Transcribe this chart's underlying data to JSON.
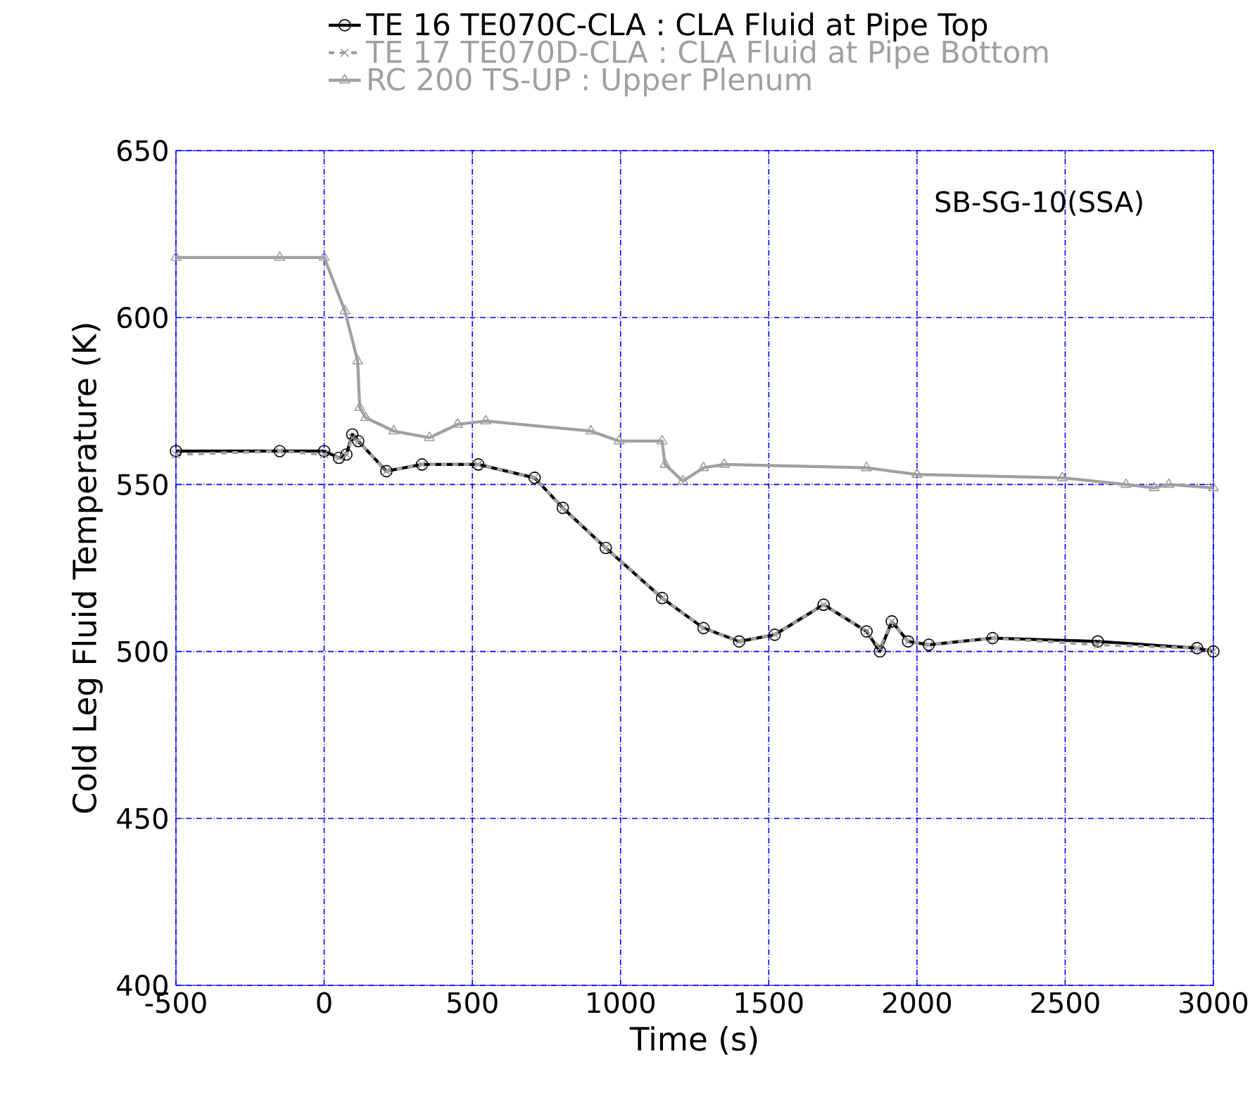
{
  "chart_data": {
    "type": "line",
    "xlabel": "Time (s)",
    "ylabel": "Cold Leg Fluid Temperature (K)",
    "annotations": [
      "SB-SG-10(SSA)"
    ],
    "xlim": [
      -500,
      3000
    ],
    "xticks": [
      -500,
      0,
      500,
      1000,
      1500,
      2000,
      2500,
      3000
    ],
    "ylim": [
      400,
      650
    ],
    "yticks": [
      400,
      450,
      500,
      550,
      600,
      650
    ],
    "grid": true,
    "legend": "top",
    "series": [
      {
        "name": "TE    16 TE070C-CLA : CLA Fluid at Pipe Top",
        "color": "#000000",
        "marker": "circle",
        "line_style": "solid",
        "x": [
          -500,
          -150,
          0,
          50,
          75,
          95,
          115,
          210,
          330,
          520,
          710,
          805,
          950,
          1140,
          1280,
          1400,
          1520,
          1685,
          1830,
          1875,
          1915,
          1970,
          2040,
          2255,
          2610,
          2945,
          3000
        ],
        "values": [
          560,
          560,
          560,
          558,
          559,
          565,
          563,
          554,
          556,
          556,
          552,
          543,
          531,
          516,
          507,
          503,
          505,
          514,
          506,
          500,
          509,
          503,
          502,
          504,
          503,
          501,
          500
        ]
      },
      {
        "name": "TE    17 TE070D-CLA : CLA Fluid at Pipe Bottom",
        "color": "#a0a0a0",
        "marker": "cross",
        "line_style": "dashed",
        "x": [
          -500,
          -150,
          0,
          50,
          75,
          95,
          115,
          210,
          330,
          520,
          710,
          805,
          950,
          1140,
          1280,
          1400,
          1520,
          1685,
          1830,
          1875,
          1915,
          1970,
          2040,
          2255,
          2610,
          2945,
          3000
        ],
        "values": [
          559,
          560,
          559,
          558,
          559,
          564,
          563,
          554,
          556,
          556,
          552,
          543,
          531,
          516,
          507,
          503,
          505,
          514,
          506,
          501,
          509,
          503,
          502,
          504,
          502,
          501,
          500
        ]
      },
      {
        "name": "RC   200 TS-UP : Upper Plenum",
        "color": "#a0a0a0",
        "marker": "triangle",
        "line_style": "solid",
        "x": [
          -500,
          -150,
          0,
          70,
          113,
          120,
          140,
          235,
          355,
          450,
          545,
          900,
          995,
          1140,
          1150,
          1210,
          1280,
          1350,
          1830,
          2000,
          2490,
          2705,
          2800,
          2850,
          3000
        ],
        "values": [
          618,
          618,
          618,
          602,
          587,
          573,
          570,
          566,
          564,
          568,
          569,
          566,
          563,
          563,
          556,
          551,
          555,
          556,
          555,
          553,
          552,
          550,
          549,
          550,
          549
        ]
      }
    ]
  }
}
